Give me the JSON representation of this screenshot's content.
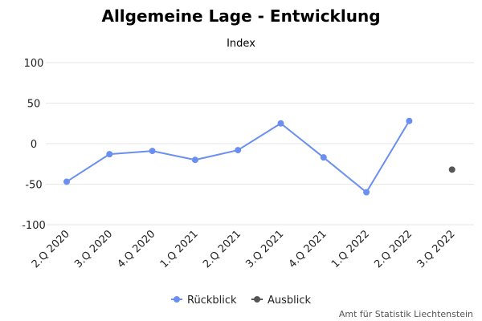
{
  "chart_data": {
    "type": "line",
    "title": "Allgemeine Lage - Entwicklung",
    "subtitle": "",
    "ylabel": "Index",
    "xlabel": "",
    "ylim": [
      -100,
      100
    ],
    "yticks": [
      100,
      50,
      0,
      -50,
      -100
    ],
    "grid": true,
    "legend_position": "bottom",
    "categories": [
      "2.Q 2020",
      "3.Q 2020",
      "4.Q 2020",
      "1.Q 2021",
      "2.Q 2021",
      "3.Q 2021",
      "4.Q 2021",
      "1.Q 2022",
      "2.Q 2022",
      "3.Q 2022"
    ],
    "series": [
      {
        "name": "Rückblick",
        "color": "#6a8ff0",
        "values": [
          -47,
          -13,
          -9,
          -20,
          -8,
          25,
          -17,
          -60,
          28,
          null
        ]
      },
      {
        "name": "Ausblick",
        "color": "#555555",
        "values": [
          null,
          null,
          null,
          null,
          null,
          null,
          null,
          null,
          null,
          -32
        ]
      }
    ],
    "credit": "Amt für Statistik Liechtenstein"
  }
}
